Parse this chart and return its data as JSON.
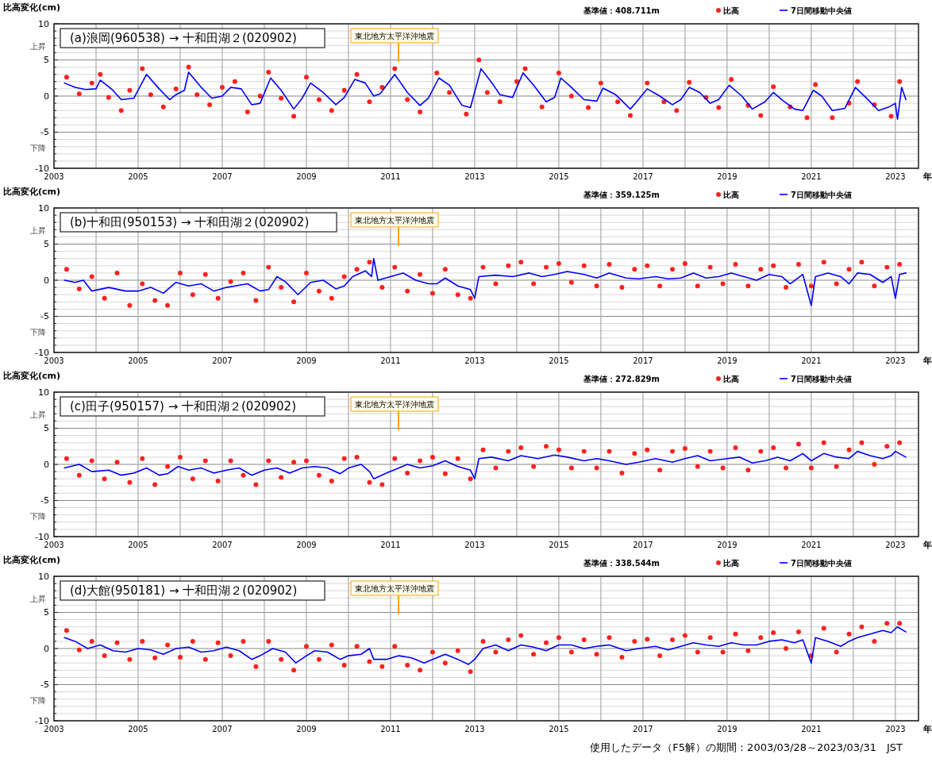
{
  "chart_data": [
    {
      "type": "line",
      "title": "(a)浪岡(960538) → 十和田湖２(020902)",
      "subtitle": "基準値：408.711m",
      "ylabel": "比高変化(cm)",
      "xlabel": "年",
      "annotations": [
        "上昇",
        "下降"
      ],
      "xlim": [
        2003,
        2023.55
      ],
      "ylim": [
        -10,
        10
      ],
      "xticks": [
        2003,
        {
          "value": 2004,
          "label": null
        },
        2005,
        {
          "value": 2006,
          "label": null
        },
        2007,
        {
          "value": 2008,
          "label": null
        },
        2009,
        {
          "value": 2010,
          "label": null
        },
        2011,
        {
          "value": 2012,
          "label": null
        },
        2013,
        {
          "value": 2014,
          "label": null
        },
        2015,
        {
          "value": 2016,
          "label": null
        },
        2017,
        {
          "value": 2018,
          "label": null
        },
        2019,
        {
          "value": 2020,
          "label": null
        },
        2021,
        {
          "value": 2022,
          "label": null
        },
        2023
      ],
      "yticks": [
        -10,
        {
          "value": -9,
          "label": null
        },
        {
          "value": -8,
          "label": null
        },
        {
          "value": -7,
          "label": null
        },
        {
          "value": -6,
          "label": null
        },
        -5,
        {
          "value": -4,
          "label": null
        },
        {
          "value": -3,
          "label": null
        },
        {
          "value": -2,
          "label": null
        },
        {
          "value": -1,
          "label": null
        },
        0,
        {
          "value": 1,
          "label": null
        },
        {
          "value": 2,
          "label": null
        },
        {
          "value": 3,
          "label": null
        },
        {
          "value": 4,
          "label": null
        },
        5,
        {
          "value": 6,
          "label": null
        },
        {
          "value": 7,
          "label": null
        },
        {
          "value": 8,
          "label": null
        },
        {
          "value": 9,
          "label": null
        },
        10
      ],
      "grid": true,
      "legend": "top right",
      "ref_lines": [
        {
          "axis": "x",
          "value": 2011.19,
          "label": "東北地方太平洋沖地震",
          "color": "#ffa500"
        }
      ],
      "series": [
        {
          "name": "比高",
          "type": "scatter",
          "color": "#ff2020",
          "x": [
            2003.3,
            2003.6,
            2003.9,
            2004.1,
            2004.3,
            2004.6,
            2004.8,
            2005.1,
            2005.3,
            2005.6,
            2005.9,
            2006.2,
            2006.4,
            2006.7,
            2007.0,
            2007.3,
            2007.6,
            2007.9,
            2008.1,
            2008.4,
            2008.7,
            2009.0,
            2009.3,
            2009.6,
            2009.9,
            2010.2,
            2010.5,
            2010.8,
            2011.1,
            2011.4,
            2011.7,
            2012.1,
            2012.4,
            2012.8,
            2013.1,
            2013.3,
            2013.6,
            2014.0,
            2014.2,
            2014.6,
            2015.0,
            2015.3,
            2015.7,
            2016.0,
            2016.4,
            2016.7,
            2017.1,
            2017.5,
            2017.8,
            2018.1,
            2018.5,
            2018.8,
            2019.1,
            2019.5,
            2019.8,
            2020.1,
            2020.5,
            2020.9,
            2021.1,
            2021.5,
            2021.9,
            2022.1,
            2022.5,
            2022.9,
            2023.1
          ],
          "values": [
            2.6,
            0.3,
            1.8,
            3.0,
            -0.2,
            -2.0,
            0.8,
            3.8,
            0.2,
            -1.5,
            1.0,
            4.0,
            0.2,
            -1.2,
            1.2,
            2.0,
            -2.2,
            0.0,
            3.3,
            -0.3,
            -2.8,
            2.6,
            -0.5,
            -2.0,
            0.8,
            3.0,
            -0.8,
            1.2,
            3.8,
            -0.5,
            -2.2,
            3.2,
            0.5,
            -2.5,
            5.0,
            0.5,
            -0.8,
            2.0,
            3.8,
            -1.5,
            3.2,
            0.0,
            -1.6,
            1.8,
            -0.8,
            -2.7,
            1.8,
            -0.8,
            -2.0,
            1.9,
            -0.2,
            -1.6,
            2.3,
            -1.3,
            -2.7,
            1.3,
            -1.5,
            -3.0,
            1.6,
            -3.0,
            -1.0,
            2.0,
            -1.2,
            -2.8,
            2.0
          ]
        },
        {
          "name": "7日間移動中央値",
          "type": "line",
          "color": "#0000ff",
          "x": [
            2003.25,
            2003.5,
            2003.75,
            2004.0,
            2004.1,
            2004.4,
            2004.6,
            2004.9,
            2005.2,
            2005.5,
            2005.75,
            2005.9,
            2006.1,
            2006.2,
            2006.5,
            2006.75,
            2007.0,
            2007.2,
            2007.45,
            2007.7,
            2007.9,
            2008.15,
            2008.4,
            2008.7,
            2008.9,
            2009.1,
            2009.4,
            2009.7,
            2009.9,
            2010.15,
            2010.4,
            2010.6,
            2010.75,
            2011.1,
            2011.4,
            2011.7,
            2011.9,
            2012.15,
            2012.4,
            2012.7,
            2012.9,
            2013.15,
            2013.45,
            2013.6,
            2013.9,
            2014.15,
            2014.4,
            2014.7,
            2014.9,
            2015.05,
            2015.3,
            2015.6,
            2015.9,
            2016.05,
            2016.35,
            2016.7,
            2016.85,
            2017.1,
            2017.4,
            2017.7,
            2017.9,
            2018.1,
            2018.35,
            2018.6,
            2018.8,
            2019.05,
            2019.35,
            2019.6,
            2019.9,
            2020.1,
            2020.3,
            2020.6,
            2020.8,
            2021.05,
            2021.25,
            2021.5,
            2021.8,
            2022.05,
            2022.3,
            2022.6,
            2022.85,
            2023.0,
            2023.05,
            2023.15,
            2023.25
          ],
          "values": [
            1.8,
            1.2,
            0.9,
            1.0,
            2.2,
            0.8,
            -0.5,
            -0.3,
            3.0,
            1.0,
            -0.5,
            0.2,
            0.8,
            3.3,
            1.2,
            -0.3,
            0.0,
            1.2,
            1.0,
            -1.2,
            -1.0,
            2.5,
            0.8,
            -1.8,
            -0.3,
            1.8,
            0.5,
            -1.2,
            -0.2,
            2.3,
            1.8,
            0.0,
            0.3,
            3.0,
            0.5,
            -1.3,
            -0.3,
            2.5,
            1.5,
            -1.3,
            -1.6,
            3.8,
            1.5,
            0.2,
            -0.2,
            3.2,
            1.5,
            -0.8,
            -0.2,
            2.5,
            1.2,
            -0.5,
            -0.7,
            1.1,
            0.2,
            -1.8,
            -0.8,
            1.0,
            0.0,
            -1.2,
            -0.5,
            1.2,
            0.5,
            -1.0,
            -0.5,
            1.5,
            0.0,
            -1.8,
            -0.8,
            0.5,
            -0.5,
            -1.8,
            -2.0,
            0.8,
            0.0,
            -2.0,
            -1.7,
            1.2,
            -0.2,
            -2.0,
            -1.5,
            -1.0,
            -3.2,
            1.2,
            -0.5
          ]
        }
      ]
    },
    {
      "type": "line",
      "title": "(b)十和田(950153) → 十和田湖２(020902)",
      "subtitle": "基準値：359.125m",
      "ylabel": "比高変化(cm)",
      "xlabel": "年",
      "annotations": [
        "上昇",
        "下降"
      ],
      "xlim": [
        2003,
        2023.55
      ],
      "ylim": [
        -10,
        10
      ],
      "xticks": [
        2003,
        {
          "value": 2004,
          "label": null
        },
        2005,
        {
          "value": 2006,
          "label": null
        },
        2007,
        {
          "value": 2008,
          "label": null
        },
        2009,
        {
          "value": 2010,
          "label": null
        },
        2011,
        {
          "value": 2012,
          "label": null
        },
        2013,
        {
          "value": 2014,
          "label": null
        },
        2015,
        {
          "value": 2016,
          "label": null
        },
        2017,
        {
          "value": 2018,
          "label": null
        },
        2019,
        {
          "value": 2020,
          "label": null
        },
        2021,
        {
          "value": 2022,
          "label": null
        },
        2023
      ],
      "yticks": [
        -10,
        {
          "value": -9,
          "label": null
        },
        {
          "value": -8,
          "label": null
        },
        {
          "value": -7,
          "label": null
        },
        {
          "value": -6,
          "label": null
        },
        -5,
        {
          "value": -4,
          "label": null
        },
        {
          "value": -3,
          "label": null
        },
        {
          "value": -2,
          "label": null
        },
        {
          "value": -1,
          "label": null
        },
        0,
        {
          "value": 1,
          "label": null
        },
        {
          "value": 2,
          "label": null
        },
        {
          "value": 3,
          "label": null
        },
        {
          "value": 4,
          "label": null
        },
        5,
        {
          "value": 6,
          "label": null
        },
        {
          "value": 7,
          "label": null
        },
        {
          "value": 8,
          "label": null
        },
        {
          "value": 9,
          "label": null
        },
        10
      ],
      "grid": true,
      "legend": "top right",
      "ref_lines": [
        {
          "axis": "x",
          "value": 2011.19,
          "label": "東北地方太平洋沖地震",
          "color": "#ffa500"
        }
      ],
      "series": [
        {
          "name": "比高",
          "type": "scatter",
          "color": "#ff2020",
          "x": [
            2003.3,
            2003.6,
            2003.9,
            2004.2,
            2004.5,
            2004.8,
            2005.1,
            2005.4,
            2005.7,
            2006.0,
            2006.3,
            2006.6,
            2006.9,
            2007.2,
            2007.5,
            2007.8,
            2008.1,
            2008.4,
            2008.7,
            2009.0,
            2009.3,
            2009.6,
            2009.9,
            2010.2,
            2010.5,
            2010.8,
            2011.1,
            2011.4,
            2011.7,
            2012.0,
            2012.3,
            2012.6,
            2012.9,
            2013.2,
            2013.5,
            2013.8,
            2014.1,
            2014.4,
            2014.7,
            2015.0,
            2015.3,
            2015.6,
            2015.9,
            2016.2,
            2016.5,
            2016.8,
            2017.1,
            2017.4,
            2017.7,
            2018.0,
            2018.3,
            2018.6,
            2018.9,
            2019.2,
            2019.5,
            2019.8,
            2020.1,
            2020.4,
            2020.7,
            2021.0,
            2021.3,
            2021.6,
            2021.9,
            2022.2,
            2022.5,
            2022.8,
            2023.1
          ],
          "values": [
            1.5,
            -1.2,
            0.5,
            -2.5,
            1.0,
            -3.5,
            -0.5,
            -2.8,
            -3.5,
            1.0,
            -2.0,
            0.8,
            -2.5,
            -0.2,
            1.0,
            -2.8,
            1.8,
            -1.0,
            -3.0,
            1.0,
            -1.5,
            -2.5,
            0.5,
            1.5,
            2.5,
            -1.0,
            1.8,
            -1.5,
            0.8,
            -1.8,
            1.5,
            -2.0,
            -2.5,
            1.8,
            -0.5,
            2.0,
            2.5,
            -0.5,
            1.8,
            2.3,
            -0.3,
            2.0,
            -0.8,
            2.2,
            -1.0,
            1.5,
            2.0,
            -0.8,
            1.5,
            2.3,
            -0.8,
            1.8,
            -0.5,
            2.2,
            -0.8,
            1.5,
            2.0,
            -1.0,
            2.2,
            -0.8,
            2.5,
            -0.5,
            1.5,
            2.5,
            -0.8,
            1.8,
            2.2
          ]
        },
        {
          "name": "7日間移動中央値",
          "type": "line",
          "color": "#0000ff",
          "x": [
            2003.25,
            2003.5,
            2003.7,
            2003.9,
            2004.3,
            2004.7,
            2005.0,
            2005.3,
            2005.6,
            2005.9,
            2006.2,
            2006.5,
            2006.8,
            2007.1,
            2007.3,
            2007.6,
            2007.9,
            2008.1,
            2008.3,
            2008.5,
            2008.8,
            2009.1,
            2009.4,
            2009.7,
            2009.9,
            2010.1,
            2010.4,
            2010.55,
            2010.6,
            2010.7,
            2011.0,
            2011.3,
            2011.6,
            2011.9,
            2012.1,
            2012.3,
            2012.6,
            2012.9,
            2013.0,
            2013.1,
            2013.5,
            2013.9,
            2014.3,
            2014.6,
            2014.9,
            2015.2,
            2015.6,
            2015.9,
            2016.2,
            2016.6,
            2016.9,
            2017.3,
            2017.6,
            2017.9,
            2018.2,
            2018.5,
            2018.8,
            2019.1,
            2019.4,
            2019.7,
            2020.0,
            2020.3,
            2020.5,
            2020.8,
            2021.0,
            2021.1,
            2021.4,
            2021.7,
            2021.9,
            2022.1,
            2022.4,
            2022.7,
            2022.9,
            2023.0,
            2023.1,
            2023.25
          ],
          "values": [
            0.0,
            -0.3,
            0.0,
            -1.5,
            -1.0,
            -1.5,
            -1.5,
            -1.0,
            -1.8,
            -0.3,
            -0.8,
            -0.5,
            -1.5,
            -1.0,
            -0.8,
            -0.5,
            -1.5,
            -1.3,
            0.5,
            -0.2,
            -2.0,
            -0.3,
            0.0,
            -1.2,
            -0.8,
            0.5,
            1.3,
            0.5,
            3.0,
            0.0,
            0.5,
            1.0,
            0.0,
            -0.5,
            -0.5,
            0.3,
            -0.8,
            -1.3,
            -2.5,
            0.5,
            0.7,
            0.5,
            1.0,
            0.5,
            0.8,
            1.2,
            0.8,
            0.3,
            1.0,
            0.3,
            0.2,
            0.5,
            0.2,
            0.3,
            1.0,
            0.3,
            0.5,
            1.0,
            0.5,
            0.0,
            0.8,
            0.5,
            -0.5,
            0.8,
            -3.5,
            0.5,
            1.0,
            0.5,
            -0.5,
            1.0,
            0.8,
            -0.3,
            0.5,
            -2.5,
            0.8,
            1.0
          ]
        }
      ]
    },
    {
      "type": "line",
      "title": "(c)田子(950157) → 十和田湖２(020902)",
      "subtitle": "基準値：272.829m",
      "ylabel": "比高変化(cm)",
      "xlabel": "年",
      "annotations": [
        "上昇",
        "下降"
      ],
      "xlim": [
        2003,
        2023.55
      ],
      "ylim": [
        -10,
        10
      ],
      "xticks": [
        2003,
        {
          "value": 2004,
          "label": null
        },
        2005,
        {
          "value": 2006,
          "label": null
        },
        2007,
        {
          "value": 2008,
          "label": null
        },
        2009,
        {
          "value": 2010,
          "label": null
        },
        2011,
        {
          "value": 2012,
          "label": null
        },
        2013,
        {
          "value": 2014,
          "label": null
        },
        2015,
        {
          "value": 2016,
          "label": null
        },
        2017,
        {
          "value": 2018,
          "label": null
        },
        2019,
        {
          "value": 2020,
          "label": null
        },
        2021,
        {
          "value": 2022,
          "label": null
        },
        2023
      ],
      "yticks": [
        -10,
        {
          "value": -9,
          "label": null
        },
        {
          "value": -8,
          "label": null
        },
        {
          "value": -7,
          "label": null
        },
        {
          "value": -6,
          "label": null
        },
        -5,
        {
          "value": -4,
          "label": null
        },
        {
          "value": -3,
          "label": null
        },
        {
          "value": -2,
          "label": null
        },
        {
          "value": -1,
          "label": null
        },
        0,
        {
          "value": 1,
          "label": null
        },
        {
          "value": 2,
          "label": null
        },
        {
          "value": 3,
          "label": null
        },
        {
          "value": 4,
          "label": null
        },
        5,
        {
          "value": 6,
          "label": null
        },
        {
          "value": 7,
          "label": null
        },
        {
          "value": 8,
          "label": null
        },
        {
          "value": 9,
          "label": null
        },
        10
      ],
      "grid": true,
      "legend": "top right",
      "ref_lines": [
        {
          "axis": "x",
          "value": 2011.19,
          "label": "東北地方太平洋沖地震",
          "color": "#ffa500"
        }
      ],
      "series": [
        {
          "name": "比高",
          "type": "scatter",
          "color": "#ff2020",
          "x": [
            2003.3,
            2003.6,
            2003.9,
            2004.2,
            2004.5,
            2004.8,
            2005.1,
            2005.4,
            2005.7,
            2006.0,
            2006.3,
            2006.6,
            2006.9,
            2007.2,
            2007.5,
            2007.8,
            2008.1,
            2008.4,
            2008.7,
            2009.0,
            2009.3,
            2009.6,
            2009.9,
            2010.2,
            2010.5,
            2010.8,
            2011.1,
            2011.4,
            2011.7,
            2012.0,
            2012.3,
            2012.6,
            2012.9,
            2013.2,
            2013.5,
            2013.8,
            2014.1,
            2014.4,
            2014.7,
            2015.0,
            2015.3,
            2015.6,
            2015.9,
            2016.2,
            2016.5,
            2016.8,
            2017.1,
            2017.4,
            2017.7,
            2018.0,
            2018.3,
            2018.6,
            2018.9,
            2019.2,
            2019.5,
            2019.8,
            2020.1,
            2020.4,
            2020.7,
            2021.0,
            2021.3,
            2021.6,
            2021.9,
            2022.2,
            2022.5,
            2022.8,
            2023.1
          ],
          "values": [
            0.8,
            -1.5,
            0.5,
            -2.0,
            0.3,
            -2.5,
            0.8,
            -2.8,
            -0.3,
            1.0,
            -2.0,
            0.5,
            -2.3,
            0.5,
            -1.5,
            -2.8,
            0.5,
            -1.8,
            0.3,
            0.5,
            -1.5,
            -2.3,
            0.8,
            1.0,
            -2.5,
            -2.8,
            0.8,
            -1.2,
            0.5,
            1.0,
            -1.3,
            0.8,
            -2.0,
            2.0,
            -0.5,
            1.8,
            2.3,
            -0.3,
            2.5,
            2.0,
            -0.5,
            1.8,
            -0.5,
            1.8,
            -1.2,
            1.5,
            2.0,
            -0.8,
            1.8,
            2.2,
            -0.3,
            1.8,
            -0.5,
            2.3,
            -0.8,
            1.8,
            2.3,
            -0.5,
            2.8,
            -0.5,
            3.0,
            -0.3,
            2.0,
            3.0,
            0.0,
            2.5,
            3.0
          ]
        },
        {
          "name": "7日間移動中央値",
          "type": "line",
          "color": "#0000ff",
          "x": [
            2003.25,
            2003.6,
            2003.9,
            2004.3,
            2004.6,
            2004.9,
            2005.2,
            2005.5,
            2005.7,
            2005.95,
            2006.2,
            2006.5,
            2006.8,
            2007.1,
            2007.4,
            2007.7,
            2008.0,
            2008.3,
            2008.6,
            2008.9,
            2009.2,
            2009.5,
            2009.8,
            2010.0,
            2010.3,
            2010.5,
            2010.6,
            2010.9,
            2011.2,
            2011.4,
            2011.7,
            2012.0,
            2012.3,
            2012.6,
            2012.9,
            2013.0,
            2013.1,
            2013.4,
            2013.8,
            2014.1,
            2014.5,
            2014.9,
            2015.2,
            2015.6,
            2015.9,
            2016.2,
            2016.6,
            2016.9,
            2017.3,
            2017.7,
            2018.0,
            2018.3,
            2018.6,
            2019.0,
            2019.3,
            2019.6,
            2019.9,
            2020.2,
            2020.5,
            2020.8,
            2021.0,
            2021.3,
            2021.6,
            2021.9,
            2022.1,
            2022.4,
            2022.7,
            2022.9,
            2023.0,
            2023.25
          ],
          "values": [
            -0.5,
            0.0,
            -1.0,
            -0.8,
            -1.5,
            -1.2,
            -0.5,
            -1.5,
            -1.3,
            -0.3,
            -0.8,
            -0.5,
            -1.2,
            -0.8,
            -0.5,
            -1.5,
            -0.8,
            -0.5,
            -1.2,
            -0.5,
            -0.3,
            -0.5,
            -1.3,
            -0.5,
            0.0,
            -1.0,
            -2.0,
            -1.2,
            -0.5,
            0.0,
            -0.5,
            -0.2,
            0.5,
            -0.3,
            -0.8,
            -2.0,
            0.8,
            1.0,
            0.5,
            1.2,
            0.8,
            1.3,
            1.0,
            0.5,
            0.8,
            0.5,
            0.0,
            0.3,
            0.8,
            0.3,
            0.8,
            1.2,
            0.5,
            0.8,
            1.0,
            0.2,
            0.5,
            1.0,
            0.5,
            1.5,
            0.5,
            1.5,
            1.0,
            0.8,
            1.8,
            1.2,
            0.8,
            1.2,
            1.8,
            1.0
          ]
        }
      ]
    },
    {
      "type": "line",
      "title": "(d)大館(950181) → 十和田湖２(020902)",
      "subtitle": "基準値：338.544m",
      "ylabel": "比高変化(cm)",
      "xlabel": "年",
      "annotations": [
        "上昇",
        "下降",
        "使用したデータ（F5解）の期間：2003/03/28～2023/03/31　JST"
      ],
      "xlim": [
        2003,
        2023.55
      ],
      "ylim": [
        -10,
        10
      ],
      "xticks": [
        2003,
        {
          "value": 2004,
          "label": null
        },
        2005,
        {
          "value": 2006,
          "label": null
        },
        2007,
        {
          "value": 2008,
          "label": null
        },
        2009,
        {
          "value": 2010,
          "label": null
        },
        2011,
        {
          "value": 2012,
          "label": null
        },
        2013,
        {
          "value": 2014,
          "label": null
        },
        2015,
        {
          "value": 2016,
          "label": null
        },
        2017,
        {
          "value": 2018,
          "label": null
        },
        2019,
        {
          "value": 2020,
          "label": null
        },
        2021,
        {
          "value": 2022,
          "label": null
        },
        2023
      ],
      "yticks": [
        -10,
        {
          "value": -9,
          "label": null
        },
        {
          "value": -8,
          "label": null
        },
        {
          "value": -7,
          "label": null
        },
        {
          "value": -6,
          "label": null
        },
        -5,
        {
          "value": -4,
          "label": null
        },
        {
          "value": -3,
          "label": null
        },
        {
          "value": -2,
          "label": null
        },
        {
          "value": -1,
          "label": null
        },
        0,
        {
          "value": 1,
          "label": null
        },
        {
          "value": 2,
          "label": null
        },
        {
          "value": 3,
          "label": null
        },
        {
          "value": 4,
          "label": null
        },
        5,
        {
          "value": 6,
          "label": null
        },
        {
          "value": 7,
          "label": null
        },
        {
          "value": 8,
          "label": null
        },
        {
          "value": 9,
          "label": null
        },
        10
      ],
      "grid": true,
      "legend": "top right",
      "ref_lines": [
        {
          "axis": "x",
          "value": 2011.19,
          "label": "東北地方太平洋沖地震",
          "color": "#ffa500"
        }
      ],
      "series": [
        {
          "name": "比高",
          "type": "scatter",
          "color": "#ff2020",
          "x": [
            2003.3,
            2003.6,
            2003.9,
            2004.2,
            2004.5,
            2004.8,
            2005.1,
            2005.4,
            2005.7,
            2006.0,
            2006.3,
            2006.6,
            2006.9,
            2007.2,
            2007.5,
            2007.8,
            2008.1,
            2008.4,
            2008.7,
            2009.0,
            2009.3,
            2009.6,
            2009.9,
            2010.2,
            2010.5,
            2010.8,
            2011.1,
            2011.4,
            2011.7,
            2012.0,
            2012.3,
            2012.6,
            2012.9,
            2013.2,
            2013.5,
            2013.8,
            2014.1,
            2014.4,
            2014.7,
            2015.0,
            2015.3,
            2015.6,
            2015.9,
            2016.2,
            2016.5,
            2016.8,
            2017.1,
            2017.4,
            2017.7,
            2018.0,
            2018.3,
            2018.6,
            2018.9,
            2019.2,
            2019.5,
            2019.8,
            2020.1,
            2020.4,
            2020.7,
            2021.0,
            2021.3,
            2021.6,
            2021.9,
            2022.2,
            2022.5,
            2022.8,
            2023.1
          ],
          "values": [
            2.5,
            -0.2,
            1.0,
            -1.0,
            0.8,
            -1.5,
            1.0,
            -1.3,
            0.5,
            -1.2,
            1.0,
            -1.5,
            0.8,
            -1.0,
            1.0,
            -2.5,
            1.0,
            -1.5,
            -3.0,
            0.3,
            -1.5,
            0.5,
            -2.3,
            0.3,
            -1.8,
            -2.5,
            0.3,
            -2.3,
            -3.0,
            -0.5,
            -2.0,
            -0.3,
            -3.2,
            1.0,
            -0.5,
            1.2,
            1.8,
            -0.8,
            0.8,
            1.5,
            -0.5,
            1.2,
            -0.8,
            1.5,
            -1.2,
            1.0,
            1.3,
            -1.0,
            1.2,
            1.8,
            -0.5,
            1.5,
            -0.5,
            2.0,
            -0.3,
            1.5,
            2.2,
            0.0,
            2.3,
            -1.0,
            2.8,
            -0.5,
            2.0,
            3.0,
            1.0,
            3.5,
            3.5
          ]
        },
        {
          "name": "7日間移動中央値",
          "type": "line",
          "color": "#0000ff",
          "x": [
            2003.25,
            2003.5,
            2003.8,
            2004.1,
            2004.4,
            2004.7,
            2005.0,
            2005.3,
            2005.6,
            2005.9,
            2006.2,
            2006.5,
            2006.8,
            2007.1,
            2007.4,
            2007.7,
            2007.9,
            2008.2,
            2008.5,
            2008.75,
            2009.0,
            2009.2,
            2009.5,
            2009.8,
            2010.0,
            2010.3,
            2010.5,
            2010.6,
            2010.9,
            2011.2,
            2011.5,
            2011.8,
            2012.0,
            2012.3,
            2012.6,
            2012.85,
            2013.0,
            2013.2,
            2013.5,
            2013.8,
            2014.1,
            2014.4,
            2014.7,
            2015.0,
            2015.3,
            2015.6,
            2015.9,
            2016.2,
            2016.6,
            2016.9,
            2017.3,
            2017.6,
            2017.9,
            2018.2,
            2018.5,
            2018.8,
            2019.1,
            2019.4,
            2019.7,
            2020.0,
            2020.3,
            2020.6,
            2020.8,
            2021.0,
            2021.1,
            2021.4,
            2021.7,
            2021.9,
            2022.1,
            2022.4,
            2022.7,
            2022.9,
            2023.05,
            2023.25
          ],
          "values": [
            1.5,
            1.0,
            0.0,
            0.5,
            -0.3,
            -0.5,
            0.0,
            -0.2,
            -0.8,
            0.0,
            0.2,
            -0.5,
            -0.3,
            0.2,
            -0.3,
            -1.5,
            -1.0,
            0.0,
            -0.5,
            -2.0,
            -1.0,
            -0.3,
            -0.5,
            -1.5,
            -1.0,
            -0.8,
            0.0,
            -1.5,
            -1.5,
            -1.0,
            -1.3,
            -2.0,
            -1.5,
            -0.8,
            -1.5,
            -2.2,
            -1.5,
            0.0,
            0.5,
            -0.3,
            0.5,
            0.2,
            -0.3,
            0.5,
            0.5,
            0.0,
            0.3,
            0.5,
            -0.3,
            0.0,
            0.3,
            -0.2,
            0.3,
            0.8,
            0.5,
            0.3,
            0.8,
            0.5,
            0.5,
            1.0,
            1.2,
            0.8,
            1.2,
            -2.0,
            1.5,
            1.0,
            0.3,
            1.0,
            1.5,
            2.0,
            2.5,
            2.2,
            3.0,
            2.3
          ]
        }
      ]
    }
  ]
}
